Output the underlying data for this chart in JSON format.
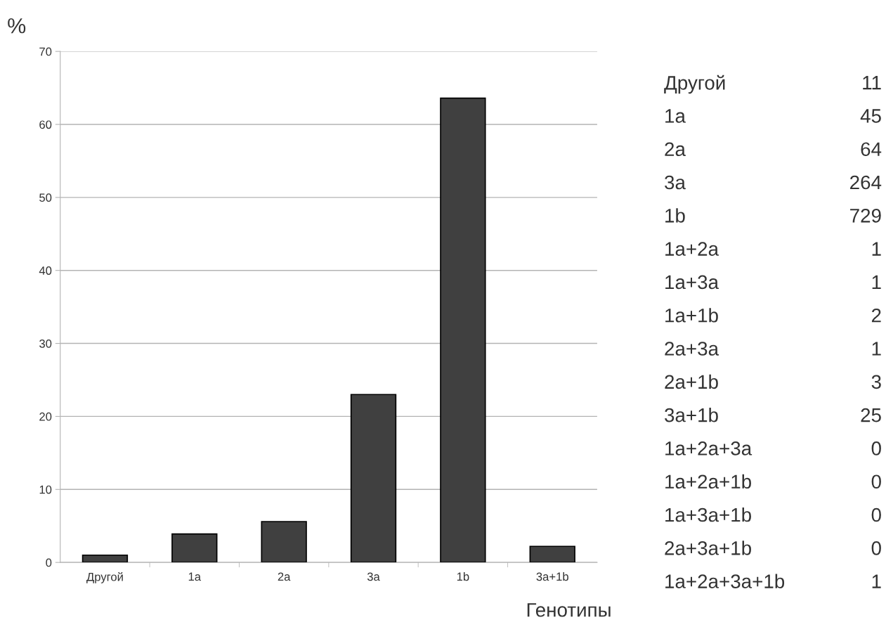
{
  "chart_data": [
    {
      "type": "bar",
      "categories": [
        "Другой",
        "1a",
        "2a",
        "3a",
        "1b",
        "3a+1b"
      ],
      "values": [
        1.0,
        3.9,
        5.6,
        23.0,
        63.6,
        2.2
      ],
      "color": "#404040",
      "ylabel": "%",
      "xlabel": "Генотипы",
      "ylim": [
        0,
        70
      ],
      "yticks": [
        0,
        10,
        20,
        30,
        40,
        50,
        60,
        70
      ],
      "grid": "y",
      "legend": false
    },
    {
      "type": "other",
      "categories": [
        "Другой",
        "1a",
        "2a",
        "3a",
        "1b",
        "1a+2a",
        "1a+3a",
        "1a+1b",
        "2a+3a",
        "2a+1b",
        "3a+1b",
        "1a+2a+3a",
        "1a+2a+1b",
        "1a+3a+1b",
        "2a+3a+1b",
        "1a+2a+3a+1b"
      ],
      "values": [
        11,
        45,
        64,
        264,
        729,
        1,
        1,
        2,
        1,
        3,
        25,
        0,
        0,
        0,
        0,
        1
      ],
      "data_labels": true
    }
  ]
}
